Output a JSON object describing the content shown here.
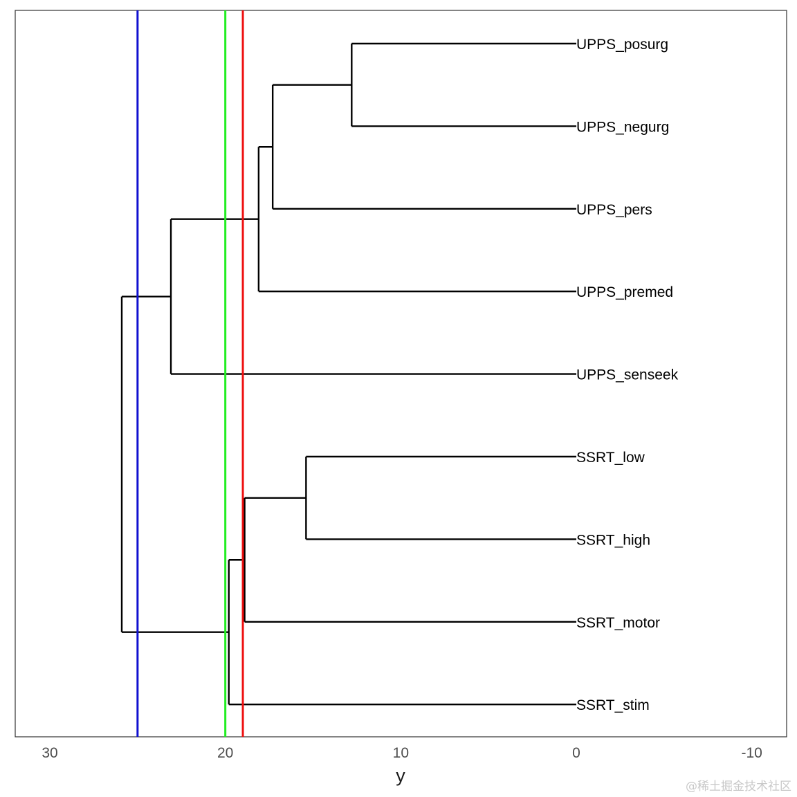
{
  "chart_data": {
    "type": "dendrogram",
    "orientation": "horizontal",
    "xlabel": "y",
    "xlim": [
      30,
      -10
    ],
    "x_ticks": [
      30,
      20,
      10,
      0,
      -10
    ],
    "x_tick_labels": [
      "30",
      "20",
      "10",
      "0",
      "-10"
    ],
    "leaves": [
      "UPPS_posurg",
      "UPPS_negurg",
      "UPPS_pers",
      "UPPS_premed",
      "UPPS_senseek",
      "SSRT_low",
      "SSRT_high",
      "SSRT_motor",
      "SSRT_stim"
    ],
    "merges": [
      {
        "id": "m1",
        "children": [
          "UPPS_posurg",
          "UPPS_negurg"
        ],
        "height": 12.8
      },
      {
        "id": "m2",
        "children": [
          "m1",
          "UPPS_pers"
        ],
        "height": 17.3
      },
      {
        "id": "m3",
        "children": [
          "m2",
          "UPPS_premed"
        ],
        "height": 18.1
      },
      {
        "id": "m4",
        "children": [
          "m3",
          "UPPS_senseek"
        ],
        "height": 23.1
      },
      {
        "id": "m5",
        "children": [
          "SSRT_low",
          "SSRT_high"
        ],
        "height": 15.4
      },
      {
        "id": "m6",
        "children": [
          "m5",
          "SSRT_motor"
        ],
        "height": 18.9
      },
      {
        "id": "m7",
        "children": [
          "m6",
          "SSRT_stim"
        ],
        "height": 19.8
      },
      {
        "id": "m8",
        "children": [
          "m4",
          "m7"
        ],
        "height": 25.9
      }
    ],
    "cut_lines": [
      {
        "value": 25,
        "color": "#1010d0"
      },
      {
        "value": 20,
        "color": "#22ee22"
      },
      {
        "value": 19,
        "color": "#ee1111"
      }
    ]
  },
  "watermark": "@稀土掘金技术社区"
}
